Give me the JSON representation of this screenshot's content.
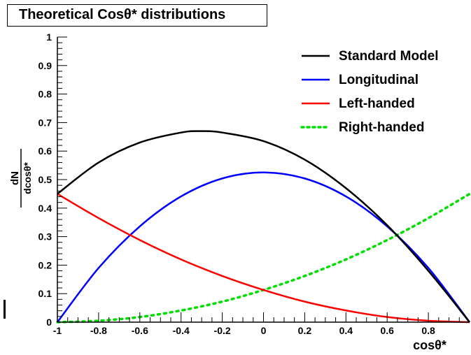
{
  "chart_data": {
    "type": "line",
    "title": "Theoretical Cosθ* distributions",
    "xlabel": "cosθ*",
    "ylabel_numerator": "dN",
    "ylabel_denominator": "dcosθ*",
    "xlim": [
      -1,
      1
    ],
    "ylim": [
      0,
      1
    ],
    "x_ticks": [
      -1,
      -0.8,
      -0.6,
      -0.4,
      -0.2,
      0,
      0.2,
      0.4,
      0.6,
      0.8
    ],
    "x_tick_labels": [
      "-1",
      "-0.8",
      "-0.6",
      "-0.4",
      "-0.2",
      "0",
      "0.2",
      "0.4",
      "0.6",
      "0.8"
    ],
    "y_ticks": [
      0,
      0.1,
      0.2,
      0.3,
      0.4,
      0.5,
      0.6,
      0.7,
      0.8,
      0.9,
      1
    ],
    "y_tick_labels": [
      "0",
      "0.1",
      "0.2",
      "0.3",
      "0.4",
      "0.5",
      "0.6",
      "0.7",
      "0.8",
      "0.9",
      "1"
    ],
    "legend_position": "top-right",
    "series": [
      {
        "name": "Standard Model",
        "color": "#000000",
        "style": "solid",
        "x": [
          -1,
          -0.8,
          -0.6,
          -0.4,
          -0.3,
          -0.2,
          0,
          0.2,
          0.4,
          0.6,
          0.8,
          1
        ],
        "y": [
          0.45,
          0.56,
          0.63,
          0.665,
          0.67,
          0.665,
          0.635,
          0.57,
          0.47,
          0.34,
          0.18,
          0.0
        ]
      },
      {
        "name": "Longitudinal",
        "color": "#0000ff",
        "style": "solid",
        "x": [
          -1,
          -0.8,
          -0.6,
          -0.4,
          -0.2,
          0,
          0.2,
          0.4,
          0.6,
          0.8,
          1
        ],
        "y": [
          0.0,
          0.19,
          0.336,
          0.441,
          0.504,
          0.525,
          0.504,
          0.441,
          0.336,
          0.19,
          0.0
        ]
      },
      {
        "name": "Left-handed",
        "color": "#ff0000",
        "style": "solid",
        "x": [
          -1,
          -0.8,
          -0.6,
          -0.4,
          -0.2,
          0,
          0.2,
          0.4,
          0.6,
          0.8,
          1
        ],
        "y": [
          0.45,
          0.365,
          0.288,
          0.22,
          0.162,
          0.113,
          0.072,
          0.041,
          0.018,
          0.005,
          0.0
        ]
      },
      {
        "name": "Right-handed",
        "color": "#00dd00",
        "style": "dotted",
        "x": [
          -1,
          -0.8,
          -0.6,
          -0.4,
          -0.2,
          0,
          0.2,
          0.4,
          0.6,
          0.8,
          1
        ],
        "y": [
          0.0,
          0.005,
          0.018,
          0.041,
          0.072,
          0.113,
          0.162,
          0.22,
          0.288,
          0.365,
          0.45
        ]
      }
    ]
  }
}
